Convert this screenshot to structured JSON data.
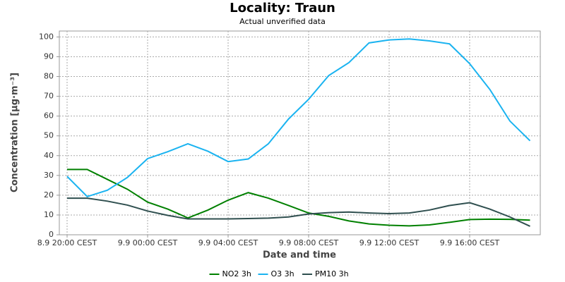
{
  "chart_data": {
    "type": "line",
    "title": "Locality: Traun",
    "subtitle": "Actual unverified data",
    "x_label": "Date and time",
    "y_label": "Concentration [µg·m⁻³]",
    "categories": [
      "8.9 20:00 CEST",
      null,
      null,
      null,
      "9.9 00:00 CEST",
      null,
      null,
      null,
      "9.9 04:00 CEST",
      null,
      null,
      null,
      "9.9 08:00 CEST",
      null,
      null,
      null,
      "9.9 12:00 CEST",
      null,
      null,
      null,
      "9.9 16:00 CEST",
      null,
      null,
      null
    ],
    "series": [
      {
        "name": "NO2 3h",
        "color": "#008000",
        "values": [
          33,
          33,
          28,
          23,
          16.5,
          13,
          8.5,
          12.5,
          17.5,
          21.3,
          18.5,
          14.8,
          11,
          9.3,
          7,
          5.5,
          4.8,
          4.5,
          5,
          6.3,
          7.7,
          7.9,
          7.8,
          7.4
        ]
      },
      {
        "name": "O3 3h",
        "color": "#1ab3f0",
        "values": [
          29.5,
          19.3,
          22.5,
          29,
          38.5,
          42,
          46,
          42.2,
          37,
          38.3,
          46,
          58.5,
          68.5,
          80.5,
          87,
          97,
          98.5,
          99,
          98,
          96.5,
          86.5,
          73.5,
          57.5,
          47.5
        ]
      },
      {
        "name": "PM10 3h",
        "color": "#2f4f4f",
        "values": [
          18.5,
          18.5,
          17,
          15,
          12,
          9.8,
          8,
          8,
          8,
          8.2,
          8.4,
          9,
          10.5,
          11.2,
          11.5,
          11,
          10.7,
          11,
          12.5,
          14.8,
          16.2,
          13,
          9,
          4.3
        ]
      }
    ],
    "ylim": [
      0,
      103
    ],
    "yticks": [
      0,
      10,
      20,
      30,
      40,
      50,
      60,
      70,
      80,
      90,
      100
    ],
    "grid": true,
    "legend": "bottom"
  }
}
